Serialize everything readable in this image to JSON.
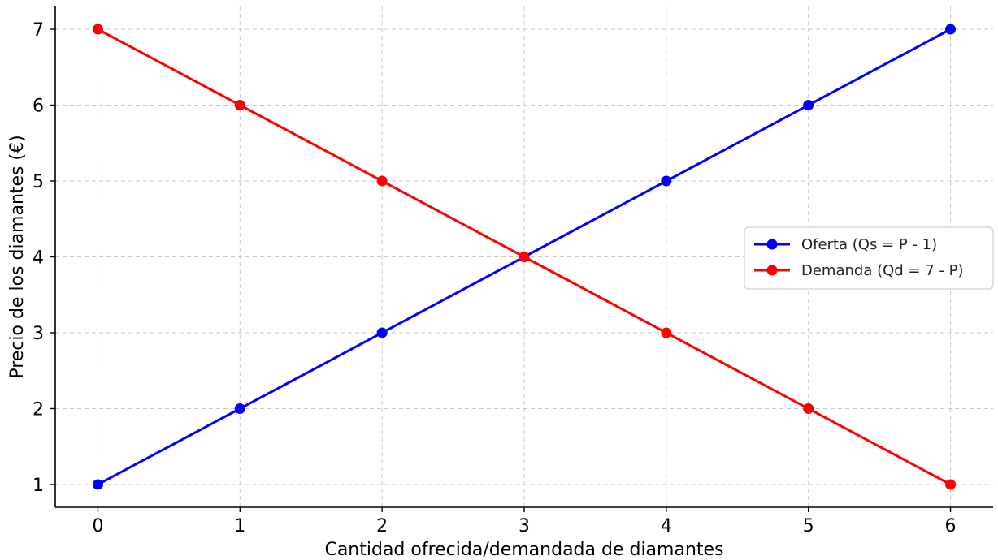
{
  "chart_data": {
    "type": "line",
    "title": "",
    "xlabel": "Cantidad ofrecida/demandada de diamantes",
    "ylabel": "Precio de los diamantes (€)",
    "x_ticks": [
      0,
      1,
      2,
      3,
      4,
      5,
      6
    ],
    "y_ticks": [
      1,
      2,
      3,
      4,
      5,
      6,
      7
    ],
    "xlim": [
      -0.3,
      6.3
    ],
    "ylim": [
      0.7,
      7.3
    ],
    "grid": true,
    "legend_position": "center-right",
    "series": [
      {
        "name": "Oferta (Qs = P - 1)",
        "color": "#0000ff",
        "points": [
          [
            0,
            1
          ],
          [
            1,
            2
          ],
          [
            2,
            3
          ],
          [
            3,
            4
          ],
          [
            4,
            5
          ],
          [
            5,
            6
          ],
          [
            6,
            7
          ]
        ]
      },
      {
        "name": "Demanda (Qd = 7 - P)",
        "color": "#ff0000",
        "points": [
          [
            0,
            7
          ],
          [
            1,
            6
          ],
          [
            2,
            5
          ],
          [
            3,
            4
          ],
          [
            4,
            3
          ],
          [
            5,
            2
          ],
          [
            6,
            1
          ]
        ]
      }
    ]
  }
}
